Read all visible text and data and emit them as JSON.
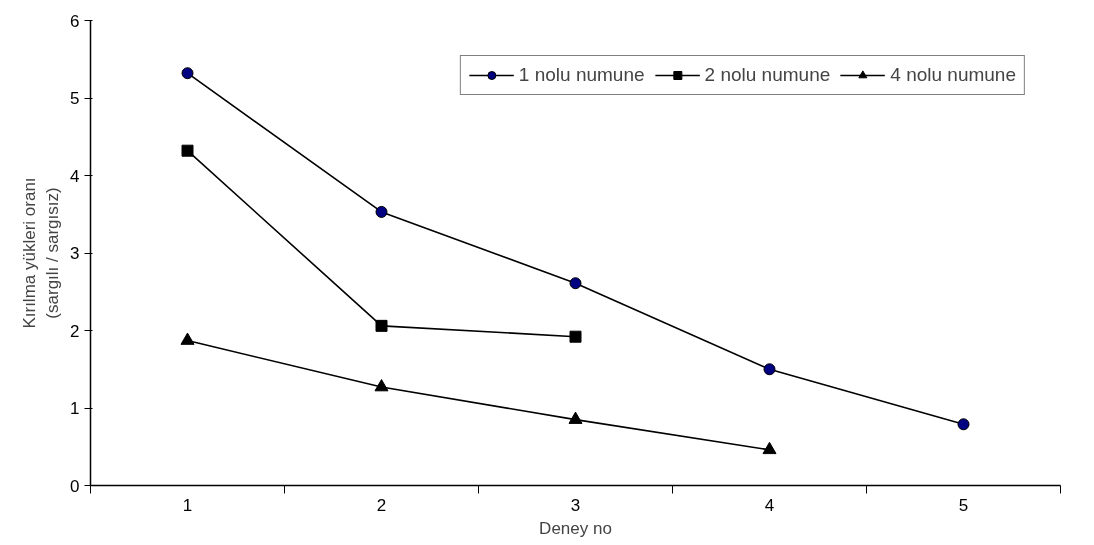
{
  "chart_data": {
    "type": "line",
    "xlabel": "Deney no",
    "ylabel": "Kırılma yükleri oranı\n(sargılı / sargısız)",
    "categories": [
      "1",
      "2",
      "3",
      "4",
      "5"
    ],
    "series": [
      {
        "name": "1 nolu numune",
        "color": "#000080",
        "marker": "circle",
        "values": [
          5.32,
          3.53,
          2.61,
          1.5,
          0.79
        ]
      },
      {
        "name": "2 nolu numune",
        "color": "#000000",
        "marker": "square",
        "values": [
          4.32,
          2.06,
          1.92,
          null,
          null
        ]
      },
      {
        "name": "4 nolu numune",
        "color": "#000000",
        "marker": "triangle",
        "values": [
          1.87,
          1.27,
          0.85,
          0.46,
          null
        ]
      }
    ],
    "ylim": [
      0,
      6
    ],
    "yticks": [
      0,
      1,
      2,
      3,
      4,
      5,
      6
    ],
    "grid": false,
    "legend": "top right",
    "line_style": "solid"
  }
}
